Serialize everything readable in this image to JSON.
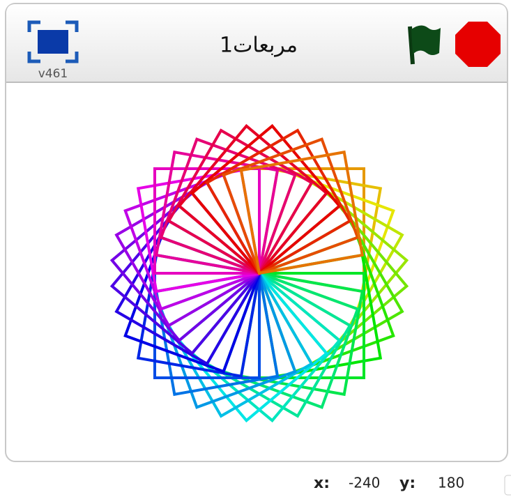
{
  "header": {
    "title": "مربعات1",
    "version": "v461"
  },
  "footer": {
    "x_label": "x:",
    "x_value": "-240",
    "y_label": "y:",
    "y_value": "180"
  }
}
